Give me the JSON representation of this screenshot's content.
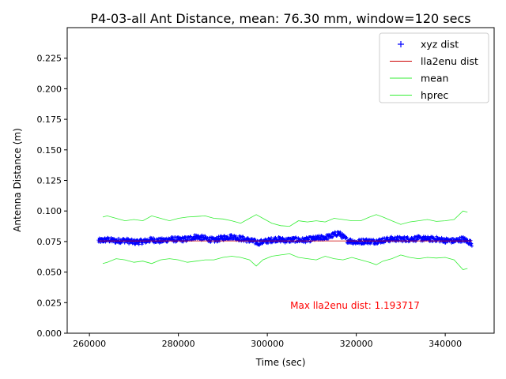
{
  "chart_data": {
    "type": "line",
    "title": "P4-03-all Ant Distance, mean: 76.30 mm, window=120 secs",
    "xlabel": "Time (sec)",
    "ylabel": "Antenna Distance (m)",
    "xlim": [
      255000,
      351000
    ],
    "ylim": [
      0.0,
      0.25
    ],
    "xticks": [
      260000,
      280000,
      300000,
      320000,
      340000
    ],
    "xtick_labels": [
      "260000",
      "280000",
      "300000",
      "320000",
      "340000"
    ],
    "yticks": [
      0.0,
      0.025,
      0.05,
      0.075,
      0.1,
      0.125,
      0.15,
      0.175,
      0.2,
      0.225
    ],
    "ytick_labels": [
      "0.000",
      "0.025",
      "0.050",
      "0.075",
      "0.100",
      "0.125",
      "0.150",
      "0.175",
      "0.200",
      "0.225"
    ],
    "grid": false,
    "legend_position": "top-right",
    "annotation": {
      "text": "Max lla2enu dist: 1.193717",
      "color": "#ff0000"
    },
    "series": [
      {
        "name": "xyz dist",
        "style": "marker-plus",
        "color": "#0000ff",
        "x": [
          262000,
          264000,
          266000,
          268000,
          270000,
          272000,
          274000,
          276000,
          278000,
          280000,
          282000,
          284000,
          286000,
          288000,
          290000,
          292000,
          294000,
          296000,
          298000,
          300000,
          302000,
          304000,
          306000,
          308000,
          310000,
          312000,
          314000,
          316000,
          318000,
          320000,
          322000,
          324000,
          326000,
          328000,
          330000,
          332000,
          334000,
          336000,
          338000,
          340000,
          342000,
          344000,
          346000
        ],
        "y": [
          0.0755,
          0.0765,
          0.0755,
          0.076,
          0.0745,
          0.075,
          0.0765,
          0.0755,
          0.077,
          0.0765,
          0.077,
          0.079,
          0.0775,
          0.076,
          0.078,
          0.079,
          0.0775,
          0.076,
          0.074,
          0.0755,
          0.077,
          0.076,
          0.0765,
          0.076,
          0.077,
          0.078,
          0.079,
          0.082,
          0.076,
          0.0745,
          0.0755,
          0.075,
          0.076,
          0.077,
          0.077,
          0.077,
          0.0775,
          0.077,
          0.077,
          0.076,
          0.0755,
          0.077,
          0.0735
        ],
        "noise": 0.0022
      },
      {
        "name": "lla2enu dist",
        "style": "line",
        "color": "#cc0000",
        "x": [
          262000,
          346000
        ],
        "y": [
          0.0755,
          0.0755
        ]
      },
      {
        "name": "mean",
        "style": "line",
        "color": "#33ee33",
        "x": [
          263000,
          264000,
          266000,
          268000,
          270000,
          272000,
          274000,
          276000,
          278000,
          280000,
          282000,
          284000,
          286000,
          288000,
          290000,
          292000,
          294000,
          296000,
          297500,
          299000,
          301000,
          303000,
          305000,
          307000,
          309000,
          311000,
          313000,
          315000,
          317000,
          319000,
          321000,
          323000,
          324500,
          326000,
          328000,
          330000,
          332000,
          334000,
          336000,
          338000,
          340000,
          342000,
          344000,
          345000
        ],
        "y": [
          0.095,
          0.096,
          0.094,
          0.092,
          0.093,
          0.092,
          0.096,
          0.094,
          0.092,
          0.094,
          0.095,
          0.0955,
          0.096,
          0.094,
          0.0935,
          0.092,
          0.09,
          0.094,
          0.097,
          0.094,
          0.09,
          0.088,
          0.0875,
          0.092,
          0.091,
          0.092,
          0.091,
          0.094,
          0.093,
          0.092,
          0.092,
          0.095,
          0.097,
          0.095,
          0.092,
          0.089,
          0.091,
          0.092,
          0.093,
          0.0915,
          0.092,
          0.093,
          0.1,
          0.099
        ]
      },
      {
        "name": "hprec",
        "style": "line",
        "color": "#33ee33",
        "x": [
          263000,
          264000,
          266000,
          268000,
          270000,
          272000,
          274000,
          276000,
          278000,
          280000,
          282000,
          284000,
          286000,
          288000,
          290000,
          292000,
          294000,
          296000,
          297500,
          299000,
          301000,
          303000,
          305000,
          307000,
          309000,
          311000,
          313000,
          315000,
          317000,
          319000,
          321000,
          323000,
          324500,
          326000,
          328000,
          330000,
          332000,
          334000,
          336000,
          338000,
          340000,
          342000,
          344000,
          345000
        ],
        "y": [
          0.057,
          0.058,
          0.061,
          0.06,
          0.058,
          0.059,
          0.057,
          0.06,
          0.061,
          0.06,
          0.058,
          0.059,
          0.06,
          0.06,
          0.062,
          0.063,
          0.062,
          0.06,
          0.055,
          0.06,
          0.063,
          0.064,
          0.065,
          0.062,
          0.061,
          0.06,
          0.063,
          0.061,
          0.06,
          0.062,
          0.06,
          0.058,
          0.056,
          0.059,
          0.061,
          0.064,
          0.062,
          0.061,
          0.062,
          0.0615,
          0.062,
          0.06,
          0.052,
          0.053
        ]
      }
    ]
  }
}
